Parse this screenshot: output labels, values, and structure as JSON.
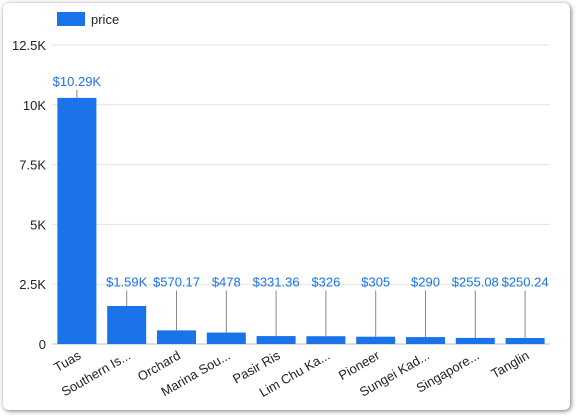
{
  "chart_data": {
    "type": "bar",
    "series": [
      {
        "name": "price",
        "color": "#1a73e8",
        "values": [
          10290,
          1590,
          570.17,
          478,
          331.36,
          326,
          305,
          290,
          255.08,
          250.24
        ]
      }
    ],
    "categories": [
      "Tuas",
      "Southern Is...",
      "Orchard",
      "Marina Sou...",
      "Pasir Ris",
      "Lim Chu Ka...",
      "Pioneer",
      "Sungei Kad...",
      "Singapore...",
      "Tanglin"
    ],
    "data_labels": [
      "$10.29K",
      "$1.59K",
      "$570.17",
      "$478",
      "$331.36",
      "$326",
      "$305",
      "$290",
      "$255.08",
      "$250.24"
    ],
    "y_ticks": [
      {
        "value": 0,
        "label": "0"
      },
      {
        "value": 2500,
        "label": "2.5K"
      },
      {
        "value": 5000,
        "label": "5K"
      },
      {
        "value": 7500,
        "label": "7.5K"
      },
      {
        "value": 10000,
        "label": "10K"
      },
      {
        "value": 12500,
        "label": "12.5K"
      }
    ],
    "ylim": [
      0,
      12500
    ],
    "grid": true,
    "legend_position": "top-left"
  }
}
